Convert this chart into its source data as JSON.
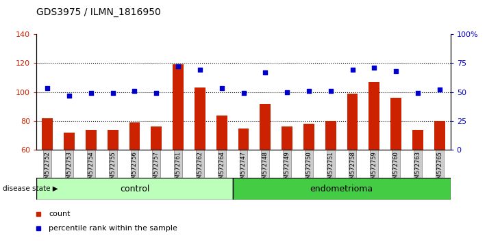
{
  "title": "GDS3975 / ILMN_1816950",
  "samples": [
    "GSM572752",
    "GSM572753",
    "GSM572754",
    "GSM572755",
    "GSM572756",
    "GSM572757",
    "GSM572761",
    "GSM572762",
    "GSM572764",
    "GSM572747",
    "GSM572748",
    "GSM572749",
    "GSM572750",
    "GSM572751",
    "GSM572758",
    "GSM572759",
    "GSM572760",
    "GSM572763",
    "GSM572765"
  ],
  "counts": [
    82,
    72,
    74,
    74,
    79,
    76,
    119,
    103,
    84,
    75,
    92,
    76,
    78,
    80,
    99,
    107,
    96,
    74,
    80
  ],
  "percentiles": [
    53,
    47,
    49,
    49,
    51,
    49,
    72,
    69,
    53,
    49,
    67,
    50,
    51,
    51,
    69,
    71,
    68,
    49,
    52
  ],
  "control_count": 9,
  "endometrioma_count": 10,
  "ylim_left": [
    60,
    140
  ],
  "ylim_right": [
    0,
    100
  ],
  "yticks_left": [
    60,
    80,
    100,
    120,
    140
  ],
  "yticks_right": [
    0,
    25,
    50,
    75,
    100
  ],
  "ytick_labels_right": [
    "0",
    "25",
    "50",
    "75",
    "100%"
  ],
  "bar_color": "#cc2200",
  "dot_color": "#0000cc",
  "control_bg": "#bbffbb",
  "endometrioma_bg": "#44cc44",
  "tick_bg": "#cccccc",
  "legend_count_label": "count",
  "legend_pct_label": "percentile rank within the sample",
  "disease_state_label": "disease state",
  "control_label": "control",
  "endometrioma_label": "endometrioma"
}
